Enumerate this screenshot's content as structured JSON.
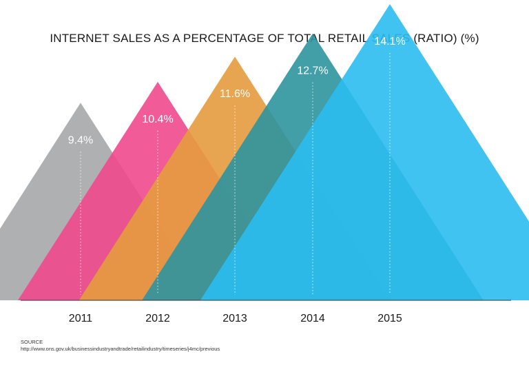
{
  "chart_data": {
    "type": "bar",
    "title": "INTERNET SALES AS A PERCENTAGE OF TOTAL RETAIL SALES (RATIO) (%)",
    "categories": [
      "2011",
      "2012",
      "2013",
      "2014",
      "2015"
    ],
    "values": [
      9.4,
      10.4,
      11.6,
      12.7,
      14.1
    ],
    "value_labels": [
      "9.4%",
      "10.4%",
      "11.6%",
      "12.7%",
      "14.1%"
    ],
    "colors": [
      "#a6a7a9",
      "#ef4a8d",
      "#e59b3e",
      "#2e949d",
      "#2bbcef"
    ],
    "mark_shape": "triangle",
    "xlabel": "",
    "ylabel": "",
    "grid": false,
    "legend": "none"
  },
  "source": {
    "heading": "SOURCE",
    "url": "http://www.ons.gov.uk/businessindustryandtrade/retailindustry/timeseries/j4mc/previous"
  }
}
